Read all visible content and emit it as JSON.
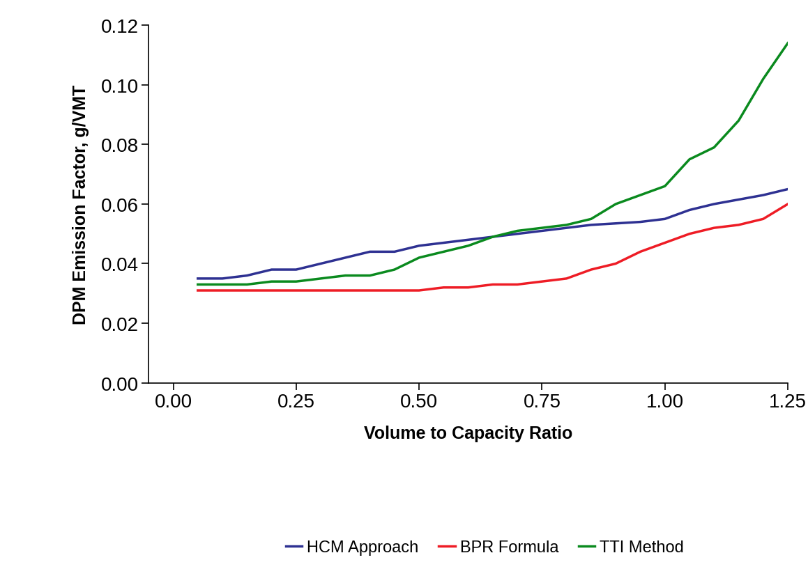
{
  "chart_data": {
    "type": "line",
    "xlabel": "Volume to Capacity Ratio",
    "ylabel": "DPM Emission Factor, g/VMT",
    "x": [
      0.05,
      0.1,
      0.15,
      0.2,
      0.25,
      0.3,
      0.35,
      0.4,
      0.45,
      0.5,
      0.55,
      0.6,
      0.65,
      0.7,
      0.75,
      0.8,
      0.85,
      0.9,
      0.95,
      1.0,
      1.05,
      1.1,
      1.15,
      1.2,
      1.25
    ],
    "series": [
      {
        "name": "HCM Approach",
        "color": "#2e3192",
        "values": [
          0.035,
          0.035,
          0.036,
          0.038,
          0.038,
          0.04,
          0.042,
          0.044,
          0.044,
          0.046,
          0.047,
          0.048,
          0.049,
          0.05,
          0.051,
          0.052,
          0.053,
          0.0535,
          0.054,
          0.055,
          0.058,
          0.06,
          0.0615,
          0.063,
          0.065
        ]
      },
      {
        "name": "BPR Formula",
        "color": "#ee1c25",
        "values": [
          0.031,
          0.031,
          0.031,
          0.031,
          0.031,
          0.031,
          0.031,
          0.031,
          0.031,
          0.031,
          0.032,
          0.032,
          0.033,
          0.033,
          0.034,
          0.035,
          0.038,
          0.04,
          0.044,
          0.047,
          0.05,
          0.052,
          0.053,
          0.055,
          0.06
        ]
      },
      {
        "name": "TTI Method",
        "color": "#0a8a1e",
        "values": [
          0.033,
          0.033,
          0.033,
          0.034,
          0.034,
          0.035,
          0.036,
          0.036,
          0.038,
          0.042,
          0.044,
          0.046,
          0.049,
          0.051,
          0.052,
          0.053,
          0.055,
          0.06,
          0.063,
          0.066,
          0.075,
          0.079,
          0.088,
          0.102,
          0.114
        ]
      }
    ],
    "xlim": [
      -0.05,
      1.25
    ],
    "xticks": [
      {
        "value": 0,
        "label": "0.00"
      },
      {
        "value": 0.25,
        "label": "0.25"
      },
      {
        "value": 0.5,
        "label": "0.50"
      },
      {
        "value": 0.75,
        "label": "0.75"
      },
      {
        "value": 1,
        "label": "1.00"
      },
      {
        "value": 1.25,
        "label": "1.25"
      }
    ],
    "ylim": [
      0,
      0.12
    ],
    "yticks": [
      {
        "value": 0,
        "label": "0.00"
      },
      {
        "value": 0.02,
        "label": "0.02"
      },
      {
        "value": 0.04,
        "label": "0.04"
      },
      {
        "value": 0.06,
        "label": "0.06"
      },
      {
        "value": 0.08,
        "label": "0.08"
      },
      {
        "value": 0.1,
        "label": "0.10"
      },
      {
        "value": 0.12,
        "label": "0.12"
      }
    ],
    "grid": false,
    "legend": "lower center"
  }
}
